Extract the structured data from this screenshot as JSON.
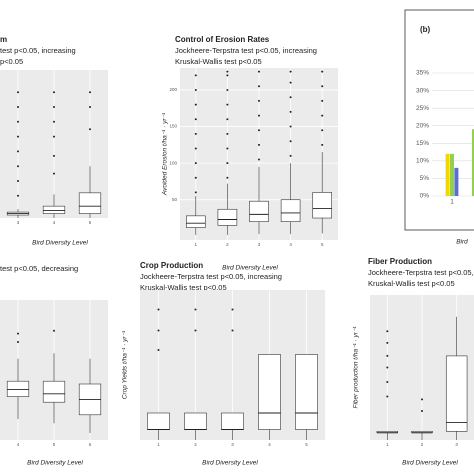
{
  "chart_data": [
    {
      "type": "box",
      "title": "m",
      "notes": [
        "test p<0.05, increasing",
        "p<0.05"
      ],
      "xlabel": "Bird Diversity Level",
      "categories": [
        "3",
        "4",
        "5"
      ],
      "ylim": [
        0,
        100
      ],
      "boxes": [
        {
          "min": 0,
          "q1": 2,
          "median": 3,
          "q3": 4,
          "max": 6,
          "outliers": [
            15,
            25,
            35,
            45,
            55,
            65,
            75,
            85
          ]
        },
        {
          "min": 0,
          "q1": 3,
          "median": 5,
          "q3": 8,
          "max": 16,
          "outliers": [
            30,
            42,
            55,
            65,
            75,
            85
          ]
        },
        {
          "min": 0,
          "q1": 3,
          "median": 8,
          "q3": 17,
          "max": 35,
          "outliers": [
            60,
            75,
            85
          ]
        }
      ]
    },
    {
      "type": "box",
      "title": "Control of Erosion Rates",
      "notes": [
        "Jockheere-Terpstra test p<0.05, increasing",
        "Kruskal-Wallis test p<0.05"
      ],
      "xlabel": "Bird Diversity Level",
      "ylabel": "Avoided Erosion  t/ha⁻¹ · yr⁻¹",
      "categories": [
        "1",
        "2",
        "3",
        "4",
        "5"
      ],
      "ylim": [
        -5,
        230
      ],
      "yticks": [
        50,
        100,
        150,
        200
      ],
      "boxes": [
        {
          "min": 2,
          "q1": 12,
          "median": 18,
          "q3": 28,
          "max": 55,
          "outliers": [
            60,
            80,
            100,
            120,
            140,
            160,
            180,
            200,
            220
          ]
        },
        {
          "min": 2,
          "q1": 15,
          "median": 23,
          "q3": 37,
          "max": 72,
          "outliers": [
            80,
            100,
            120,
            140,
            160,
            180,
            200,
            220,
            225
          ]
        },
        {
          "min": 3,
          "q1": 20,
          "median": 30,
          "q3": 48,
          "max": 95,
          "outliers": [
            105,
            125,
            145,
            165,
            185,
            205,
            225
          ]
        },
        {
          "min": 3,
          "q1": 20,
          "median": 32,
          "q3": 50,
          "max": 100,
          "outliers": [
            110,
            130,
            150,
            170,
            190,
            210,
            225
          ]
        },
        {
          "min": 4,
          "q1": 25,
          "median": 38,
          "q3": 60,
          "max": 115,
          "outliers": [
            125,
            145,
            165,
            185,
            205,
            225
          ]
        }
      ]
    },
    {
      "type": "bar",
      "title": "(b)",
      "xlabel": "Bird",
      "categories": [
        "1",
        null
      ],
      "ylim": [
        0,
        35
      ],
      "yticks": [
        {
          "value": 0,
          "label": "0%"
        },
        {
          "value": 5,
          "label": "5%"
        },
        {
          "value": 10,
          "label": "10%"
        },
        {
          "value": 15,
          "label": "15%"
        },
        {
          "value": 20,
          "label": "20%"
        },
        {
          "value": 25,
          "label": "25%"
        },
        {
          "value": 30,
          "label": "30%"
        },
        {
          "value": 35,
          "label": "35%"
        }
      ],
      "series": [
        {
          "color": "#f2d600",
          "values": [
            12,
            null
          ]
        },
        {
          "color": "#92d050",
          "values": [
            12,
            19
          ]
        },
        {
          "color": "#5b6fd0",
          "values": [
            8,
            null
          ]
        }
      ]
    },
    {
      "type": "box",
      "notes": [
        "test p<0.05, decreasing"
      ],
      "xlabel": "Bird Diversity Level",
      "categories": [
        "4",
        "5",
        "6"
      ],
      "ylim": [
        0,
        100
      ],
      "boxes": [
        {
          "min": 15,
          "q1": 31,
          "median": 36,
          "q3": 42,
          "max": 58,
          "outliers": [
            70,
            76
          ]
        },
        {
          "min": 12,
          "q1": 27,
          "median": 33,
          "q3": 42,
          "max": 62,
          "outliers": [
            78
          ]
        },
        {
          "min": 5,
          "q1": 18,
          "median": 29,
          "q3": 40,
          "max": 58,
          "outliers": []
        }
      ]
    },
    {
      "type": "box",
      "title": "Crop Production",
      "notes": [
        "Jockheere-Terpstra test p<0.05, increasing",
        "Kruskal-Wallis test p<0.05"
      ],
      "xlabel": "Bird Diversity Level",
      "ylabel": "Crop Yields  t/ha⁻¹ · yr⁻¹",
      "categories": [
        "1",
        "2",
        "3",
        "4",
        "5"
      ],
      "ylim": [
        0,
        100
      ],
      "boxes": [
        {
          "min": 0,
          "q1": 7,
          "median": 7,
          "q3": 18,
          "max": 18,
          "outliers": [
            60,
            73,
            87
          ]
        },
        {
          "min": 0,
          "q1": 7,
          "median": 7,
          "q3": 18,
          "max": 18,
          "outliers": [
            73,
            87
          ]
        },
        {
          "min": 0,
          "q1": 7,
          "median": 7,
          "q3": 18,
          "max": 18,
          "outliers": [
            73,
            87
          ]
        },
        {
          "min": 0,
          "q1": 7,
          "median": 18,
          "q3": 57,
          "max": 57,
          "outliers": []
        },
        {
          "min": 0,
          "q1": 7,
          "median": 18,
          "q3": 57,
          "max": 57,
          "outliers": []
        }
      ]
    },
    {
      "type": "box",
      "title": "Fiber Production",
      "notes": [
        "Jockheere-Terpstra test p<0.05, i",
        "Kruskal-Wallis test p<0.05"
      ],
      "xlabel": "Bird Diversity Level",
      "ylabel": "Fiber production  t/ha⁻¹ · yr⁻¹",
      "categories": [
        "1",
        "2",
        "3"
      ],
      "ylim": [
        0,
        100
      ],
      "boxes": [
        {
          "min": 0,
          "q1": 5,
          "median": 5,
          "q3": 6,
          "max": 6,
          "outliers": [
            30,
            40,
            50,
            58,
            67,
            75
          ]
        },
        {
          "min": 0,
          "q1": 5,
          "median": 5,
          "q3": 6,
          "max": 6,
          "outliers": [
            20,
            28
          ]
        },
        {
          "min": 0,
          "q1": 6,
          "median": 12,
          "q3": 58,
          "max": 85,
          "outliers": []
        }
      ]
    }
  ]
}
